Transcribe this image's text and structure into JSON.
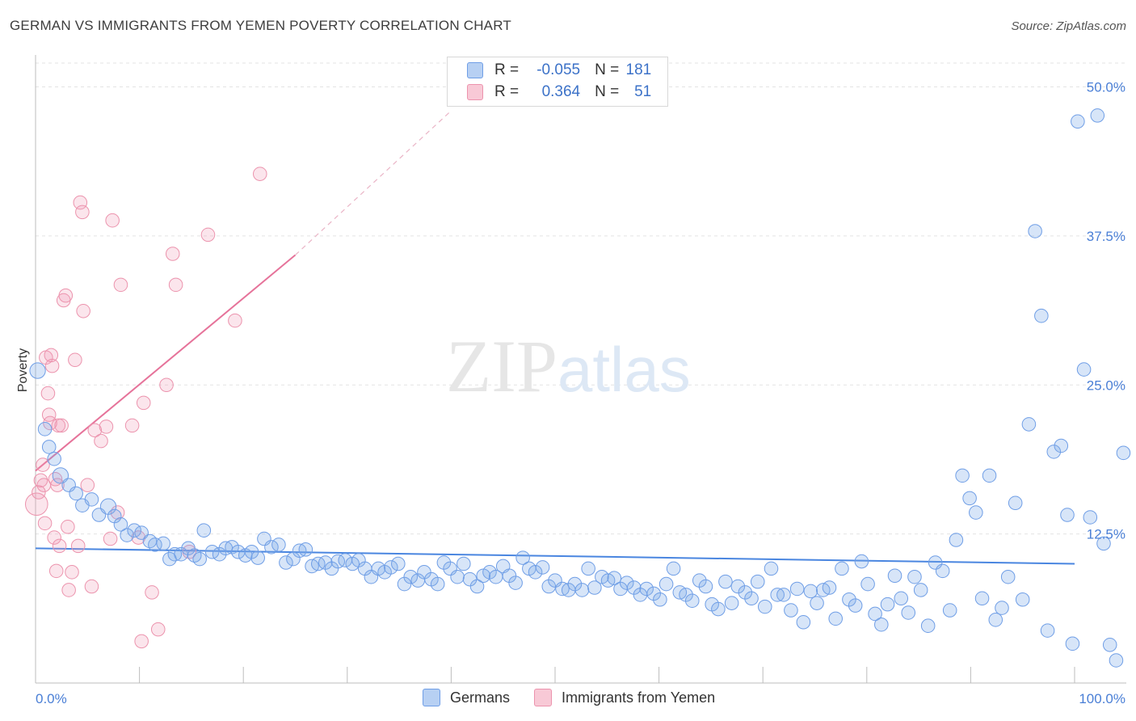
{
  "header": {
    "title": "GERMAN VS IMMIGRANTS FROM YEMEN POVERTY CORRELATION CHART",
    "source": "Source: ZipAtlas.com"
  },
  "legend": {
    "rows": [
      {
        "r_label": "R =",
        "r_value": "-0.055",
        "n_label": "N =",
        "n_value": "181",
        "color": "#b7d0f3",
        "border": "#6f9ee6"
      },
      {
        "r_label": "R =",
        "r_value": "0.364",
        "n_label": "N =",
        "n_value": "51",
        "color": "#f8c9d6",
        "border": "#ec93ad"
      }
    ]
  },
  "bottom_legend": {
    "germans": "Germans",
    "yemen": "Immigrants from Yemen"
  },
  "watermark": {
    "zip": "ZIP",
    "atlas": "atlas"
  },
  "colors": {
    "blue": "#4a86e0",
    "blue_fill": "rgba(122,168,232,0.30)",
    "pink": "#e6739a",
    "pink_fill": "rgba(240,150,180,0.25)",
    "grid": "#e3e3e3",
    "axis_text": "#4a7fd6"
  },
  "chart_data": {
    "type": "scatter",
    "title": "GERMAN VS IMMIGRANTS FROM YEMEN POVERTY CORRELATION CHART",
    "xlabel": "",
    "ylabel": "Poverty",
    "xlim": [
      0,
      100
    ],
    "ylim": [
      0,
      52
    ],
    "x_tick_labels": [
      "0.0%",
      "100.0%"
    ],
    "y_ticks": [
      12.5,
      25.0,
      37.5,
      50.0
    ],
    "y_tick_labels": [
      "12.5%",
      "25.0%",
      "37.5%",
      "50.0%"
    ],
    "grid": true,
    "legend_position": "top-center",
    "series": [
      {
        "name": "Germans",
        "r": -0.055,
        "n": 181,
        "trend": {
          "x": [
            0,
            100
          ],
          "y": [
            11.3,
            10.0
          ]
        },
        "points": [
          [
            0.2,
            26.2,
            14
          ],
          [
            0.9,
            21.3,
            12
          ],
          [
            1.3,
            19.8,
            12
          ],
          [
            1.8,
            18.8,
            12
          ],
          [
            2.4,
            17.4,
            14
          ],
          [
            3.2,
            16.6,
            12
          ],
          [
            3.9,
            15.9,
            12
          ],
          [
            4.5,
            14.9,
            12
          ],
          [
            5.4,
            15.4,
            12
          ],
          [
            6.1,
            14.1,
            12
          ],
          [
            7.0,
            14.8,
            14
          ],
          [
            7.6,
            14.0,
            12
          ],
          [
            8.2,
            13.3,
            12
          ],
          [
            8.8,
            12.4,
            12
          ],
          [
            9.5,
            12.8,
            12
          ],
          [
            10.2,
            12.6,
            12
          ],
          [
            11.0,
            11.9,
            12
          ],
          [
            11.5,
            11.6,
            12
          ],
          [
            12.3,
            11.7,
            12
          ],
          [
            12.9,
            10.4,
            12
          ],
          [
            13.4,
            10.8,
            12
          ],
          [
            14.0,
            10.8,
            12
          ],
          [
            14.7,
            11.3,
            12
          ],
          [
            15.3,
            10.7,
            12
          ],
          [
            15.8,
            10.4,
            12
          ],
          [
            16.2,
            12.8,
            12
          ],
          [
            17.0,
            11.0,
            12
          ],
          [
            17.7,
            10.8,
            12
          ],
          [
            18.3,
            11.3,
            12
          ],
          [
            18.9,
            11.4,
            12
          ],
          [
            19.5,
            11.0,
            12
          ],
          [
            20.2,
            10.7,
            12
          ],
          [
            20.8,
            11.0,
            12
          ],
          [
            21.4,
            10.5,
            12
          ],
          [
            22.0,
            12.1,
            12
          ],
          [
            22.7,
            11.4,
            12
          ],
          [
            23.4,
            11.6,
            12
          ],
          [
            24.1,
            10.1,
            12
          ],
          [
            24.8,
            10.4,
            12
          ],
          [
            25.4,
            11.1,
            12
          ],
          [
            26.0,
            11.2,
            12
          ],
          [
            26.6,
            9.8,
            12
          ],
          [
            27.2,
            10.0,
            12
          ],
          [
            27.9,
            10.1,
            12
          ],
          [
            28.5,
            9.6,
            12
          ],
          [
            29.1,
            10.2,
            12
          ],
          [
            29.8,
            10.3,
            12
          ],
          [
            30.5,
            10.0,
            12
          ],
          [
            31.1,
            10.3,
            12
          ],
          [
            31.7,
            9.6,
            12
          ],
          [
            32.3,
            8.9,
            12
          ],
          [
            33.0,
            9.6,
            12
          ],
          [
            33.6,
            9.3,
            12
          ],
          [
            34.2,
            9.7,
            12
          ],
          [
            34.9,
            10.0,
            12
          ],
          [
            35.5,
            8.3,
            12
          ],
          [
            36.1,
            8.9,
            12
          ],
          [
            36.8,
            8.6,
            12
          ],
          [
            37.4,
            9.3,
            12
          ],
          [
            38.1,
            8.7,
            12
          ],
          [
            38.7,
            8.3,
            12
          ],
          [
            39.3,
            10.1,
            12
          ],
          [
            39.9,
            9.6,
            12
          ],
          [
            40.6,
            8.9,
            12
          ],
          [
            41.2,
            10.0,
            12
          ],
          [
            41.8,
            8.7,
            12
          ],
          [
            42.5,
            8.1,
            12
          ],
          [
            43.1,
            9.0,
            12
          ],
          [
            43.7,
            9.3,
            12
          ],
          [
            44.3,
            8.9,
            12
          ],
          [
            45.0,
            9.8,
            12
          ],
          [
            45.6,
            9.0,
            12
          ],
          [
            46.2,
            8.4,
            12
          ],
          [
            46.9,
            10.5,
            12
          ],
          [
            47.5,
            9.6,
            12
          ],
          [
            48.1,
            9.3,
            12
          ],
          [
            48.8,
            9.7,
            12
          ],
          [
            49.4,
            8.1,
            12
          ],
          [
            50.0,
            8.6,
            12
          ],
          [
            50.7,
            7.9,
            12
          ],
          [
            51.3,
            7.8,
            12
          ],
          [
            51.9,
            8.3,
            12
          ],
          [
            52.6,
            7.8,
            12
          ],
          [
            53.2,
            9.6,
            12
          ],
          [
            53.8,
            8.0,
            12
          ],
          [
            54.5,
            8.9,
            12
          ],
          [
            55.1,
            8.6,
            12
          ],
          [
            55.7,
            8.8,
            12
          ],
          [
            56.3,
            7.9,
            12
          ],
          [
            56.9,
            8.4,
            12
          ],
          [
            57.6,
            8.0,
            12
          ],
          [
            58.2,
            7.4,
            12
          ],
          [
            58.8,
            7.9,
            12
          ],
          [
            59.5,
            7.5,
            12
          ],
          [
            60.1,
            7.0,
            12
          ],
          [
            60.7,
            8.3,
            12
          ],
          [
            61.4,
            9.6,
            12
          ],
          [
            62.0,
            7.6,
            12
          ],
          [
            62.6,
            7.4,
            12
          ],
          [
            63.2,
            6.9,
            12
          ],
          [
            63.9,
            8.6,
            12
          ],
          [
            64.5,
            8.1,
            12
          ],
          [
            65.1,
            6.6,
            12
          ],
          [
            65.7,
            6.2,
            12
          ],
          [
            66.4,
            8.5,
            12
          ],
          [
            67.0,
            6.7,
            12
          ],
          [
            67.6,
            8.1,
            12
          ],
          [
            68.3,
            7.6,
            12
          ],
          [
            68.9,
            7.1,
            12
          ],
          [
            69.5,
            8.5,
            12
          ],
          [
            70.2,
            6.4,
            12
          ],
          [
            70.8,
            9.6,
            12
          ],
          [
            71.4,
            7.4,
            12
          ],
          [
            72.0,
            7.4,
            12
          ],
          [
            72.7,
            6.1,
            12
          ],
          [
            73.3,
            7.9,
            12
          ],
          [
            73.9,
            5.1,
            12
          ],
          [
            74.6,
            7.7,
            12
          ],
          [
            75.2,
            6.7,
            12
          ],
          [
            75.8,
            7.8,
            12
          ],
          [
            76.4,
            8.0,
            12
          ],
          [
            77.0,
            5.4,
            12
          ],
          [
            77.6,
            9.6,
            12
          ],
          [
            78.3,
            7.0,
            12
          ],
          [
            78.9,
            6.5,
            12
          ],
          [
            79.5,
            10.2,
            12
          ],
          [
            80.1,
            8.3,
            12
          ],
          [
            80.8,
            5.8,
            12
          ],
          [
            81.4,
            4.9,
            12
          ],
          [
            82.0,
            6.6,
            12
          ],
          [
            82.7,
            9.0,
            12
          ],
          [
            83.3,
            7.1,
            12
          ],
          [
            84.0,
            5.9,
            12
          ],
          [
            84.6,
            8.9,
            12
          ],
          [
            85.2,
            7.8,
            12
          ],
          [
            85.9,
            4.8,
            12
          ],
          [
            86.6,
            10.1,
            12
          ],
          [
            87.3,
            9.4,
            12
          ],
          [
            88.0,
            6.1,
            12
          ],
          [
            88.6,
            12.0,
            12
          ],
          [
            89.2,
            17.4,
            12
          ],
          [
            89.9,
            15.5,
            12
          ],
          [
            90.5,
            14.3,
            12
          ],
          [
            91.1,
            7.1,
            12
          ],
          [
            91.8,
            17.4,
            12
          ],
          [
            92.4,
            5.3,
            12
          ],
          [
            93.0,
            6.3,
            12
          ],
          [
            93.6,
            8.9,
            12
          ],
          [
            94.3,
            15.1,
            12
          ],
          [
            95.0,
            7.0,
            12
          ],
          [
            95.6,
            21.7,
            12
          ],
          [
            96.2,
            37.9,
            12
          ],
          [
            96.8,
            30.8,
            12
          ],
          [
            97.4,
            4.4,
            12
          ],
          [
            98.0,
            19.4,
            12
          ],
          [
            98.7,
            19.9,
            12
          ],
          [
            99.3,
            14.1,
            12
          ],
          [
            99.8,
            3.3,
            12
          ],
          [
            100.3,
            47.1,
            12
          ],
          [
            100.9,
            26.3,
            12
          ],
          [
            101.5,
            13.9,
            12
          ],
          [
            102.2,
            47.6,
            12
          ],
          [
            102.8,
            11.7,
            12
          ],
          [
            103.4,
            3.2,
            12
          ],
          [
            104.0,
            1.9,
            12
          ],
          [
            104.7,
            19.3,
            12
          ]
        ]
      },
      {
        "name": "Immigrants from Yemen",
        "r": 0.364,
        "n": 51,
        "trend": {
          "x": [
            0,
            25
          ],
          "y": [
            17.8,
            35.9
          ]
        },
        "trend_extension": {
          "x": [
            25,
            40
          ],
          "y": [
            35.9,
            48
          ]
        },
        "points": [
          [
            0.1,
            15.0,
            20
          ],
          [
            0.3,
            16.0,
            12
          ],
          [
            0.5,
            17.0,
            12
          ],
          [
            0.7,
            18.3,
            12
          ],
          [
            0.8,
            16.6,
            12
          ],
          [
            0.9,
            13.4,
            12
          ],
          [
            1.0,
            27.3,
            12
          ],
          [
            1.2,
            24.3,
            12
          ],
          [
            1.4,
            21.8,
            12
          ],
          [
            1.6,
            26.6,
            12
          ],
          [
            1.8,
            12.2,
            12
          ],
          [
            2.0,
            9.4,
            12
          ],
          [
            2.1,
            16.6,
            12
          ],
          [
            2.3,
            11.5,
            12
          ],
          [
            2.5,
            21.6,
            12
          ],
          [
            2.7,
            32.1,
            12
          ],
          [
            2.9,
            32.5,
            12
          ],
          [
            3.2,
            7.8,
            12
          ],
          [
            3.5,
            9.3,
            12
          ],
          [
            3.8,
            27.1,
            12
          ],
          [
            4.1,
            11.5,
            12
          ],
          [
            4.3,
            40.3,
            12
          ],
          [
            4.5,
            39.5,
            12
          ],
          [
            4.6,
            31.2,
            12
          ],
          [
            5.0,
            16.6,
            12
          ],
          [
            5.4,
            8.1,
            12
          ],
          [
            6.3,
            20.3,
            12
          ],
          [
            6.8,
            21.5,
            12
          ],
          [
            7.4,
            38.8,
            12
          ],
          [
            7.9,
            14.3,
            12
          ],
          [
            8.2,
            33.4,
            12
          ],
          [
            9.3,
            21.6,
            12
          ],
          [
            10.2,
            3.5,
            12
          ],
          [
            10.4,
            23.5,
            12
          ],
          [
            11.2,
            7.6,
            12
          ],
          [
            11.8,
            4.5,
            12
          ],
          [
            12.6,
            25.0,
            12
          ],
          [
            13.5,
            33.4,
            12
          ],
          [
            16.6,
            37.6,
            12
          ],
          [
            19.2,
            30.4,
            12
          ],
          [
            21.6,
            42.7,
            12
          ],
          [
            1.3,
            22.5,
            12
          ],
          [
            1.5,
            27.5,
            12
          ],
          [
            1.9,
            17.1,
            12
          ],
          [
            2.2,
            21.6,
            12
          ],
          [
            3.1,
            13.1,
            12
          ],
          [
            5.7,
            21.2,
            12
          ],
          [
            7.2,
            12.1,
            12
          ],
          [
            9.9,
            12.2,
            12
          ],
          [
            13.2,
            36.0,
            12
          ],
          [
            14.8,
            11.0,
            12
          ]
        ]
      }
    ]
  }
}
